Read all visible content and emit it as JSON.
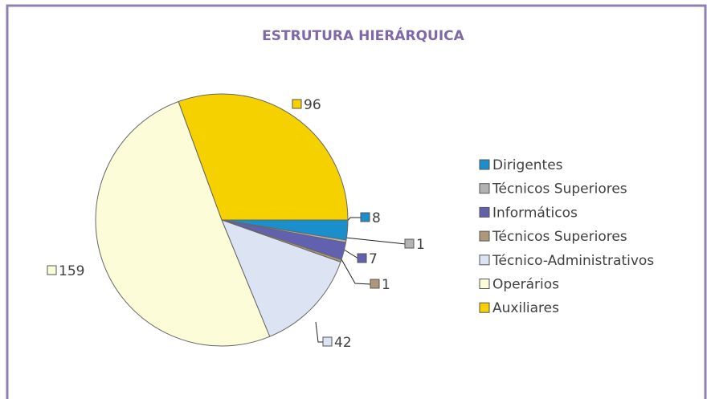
{
  "chart_data": {
    "type": "pie",
    "title": "ESTRUTURA HIERÁRQUICA",
    "categories": [
      "Dirigentes",
      "Técnicos Superiores",
      "Informáticos",
      "Técnicos Superiores",
      "Técnico-Administrativos",
      "Operários",
      "Auxiliares"
    ],
    "values": [
      8,
      1,
      7,
      1,
      42,
      159,
      96
    ],
    "colors": [
      "#1a8fcc",
      "#b3b3b3",
      "#6161b0",
      "#ae977a",
      "#dce3f3",
      "#fdfcd9",
      "#f5d100"
    ],
    "legend": "right"
  }
}
